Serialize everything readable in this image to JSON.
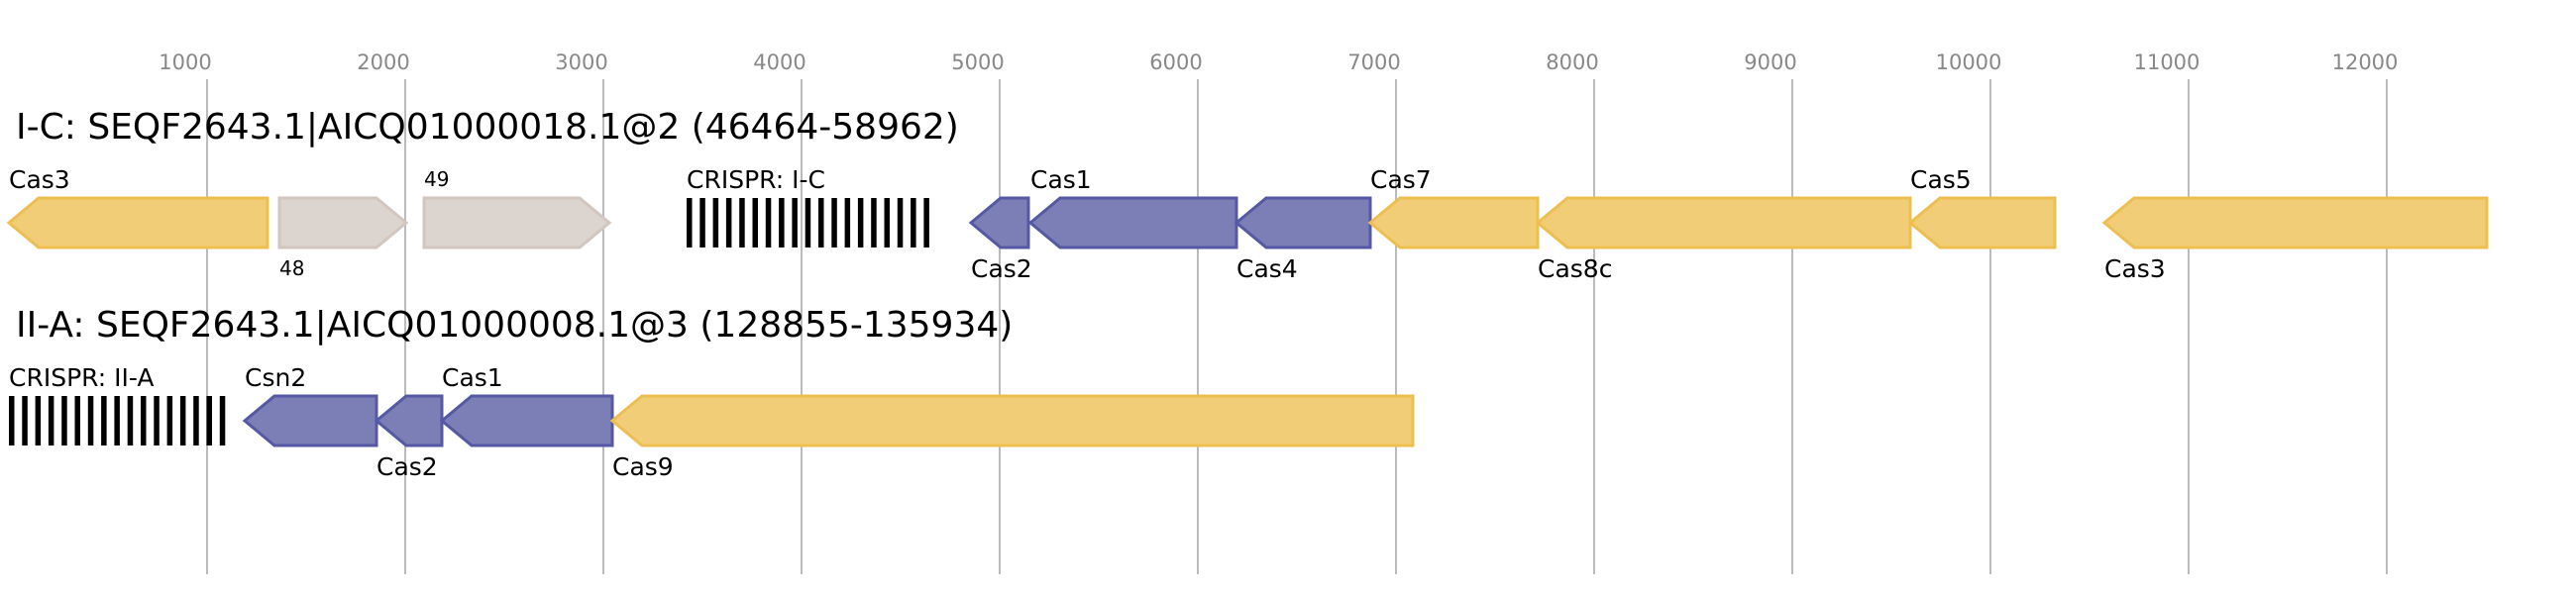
{
  "axis": {
    "ticks": [
      1000,
      2000,
      3000,
      4000,
      5000,
      6000,
      7000,
      8000,
      9000,
      10000,
      11000,
      12000
    ],
    "range_bp": [
      0,
      12600
    ],
    "grid": true
  },
  "colors": {
    "cas_yellow_fill": "#f1cd78",
    "cas_yellow_stroke": "#eebe4e",
    "cas_purple_fill": "#7b7fb5",
    "cas_purple_stroke": "#5558a5",
    "other_grey_fill": "#dcd4cf",
    "other_grey_stroke": "#d2c6bf",
    "crispr": "#000000"
  },
  "loci": [
    {
      "title": "I-C: SEQF2643.1|AICQ01000018.1@2 (46464-58962)",
      "features": [
        {
          "label": "Cas3",
          "start": 0,
          "end": 1305,
          "strand": "-",
          "kind": "yellow",
          "label_pos": "above"
        },
        {
          "label": "48",
          "start": 1365,
          "end": 2005,
          "strand": "+",
          "kind": "grey",
          "label_pos": "below",
          "small": true
        },
        {
          "label": "49",
          "start": 2095,
          "end": 3030,
          "strand": "+",
          "kind": "grey",
          "label_pos": "above",
          "small": true
        },
        {
          "label": "CRISPR: I-C",
          "start": 3420,
          "end": 4705,
          "kind": "crispr",
          "label_pos": "above"
        },
        {
          "label": "Cas2",
          "start": 4855,
          "end": 5145,
          "strand": "-",
          "kind": "purple",
          "label_pos": "below"
        },
        {
          "label": "Cas1",
          "start": 5155,
          "end": 6195,
          "strand": "-",
          "kind": "purple",
          "label_pos": "above"
        },
        {
          "label": "Cas4",
          "start": 6195,
          "end": 6870,
          "strand": "-",
          "kind": "purple",
          "label_pos": "below"
        },
        {
          "label": "Cas7",
          "start": 6870,
          "end": 7715,
          "strand": "-",
          "kind": "yellow",
          "label_pos": "above"
        },
        {
          "label": "Cas8c",
          "start": 7715,
          "end": 9595,
          "strand": "-",
          "kind": "yellow",
          "label_pos": "below"
        },
        {
          "label": "Cas5",
          "start": 9595,
          "end": 10325,
          "strand": "-",
          "kind": "yellow",
          "label_pos": "above"
        },
        {
          "label": "Cas3",
          "start": 10575,
          "end": 12505,
          "strand": "-",
          "kind": "yellow",
          "label_pos": "below"
        }
      ]
    },
    {
      "title": "II-A: SEQF2643.1|AICQ01000008.1@3 (128855-135934)",
      "features": [
        {
          "label": "CRISPR: II-A",
          "start": 0,
          "end": 1090,
          "kind": "crispr",
          "label_pos": "above"
        },
        {
          "label": "Csn2",
          "start": 1190,
          "end": 1855,
          "strand": "-",
          "kind": "purple",
          "label_pos": "above"
        },
        {
          "label": "Cas2",
          "start": 1855,
          "end": 2185,
          "strand": "-",
          "kind": "purple",
          "label_pos": "below"
        },
        {
          "label": "Cas1",
          "start": 2185,
          "end": 3045,
          "strand": "-",
          "kind": "purple",
          "label_pos": "above"
        },
        {
          "label": "Cas9",
          "start": 3045,
          "end": 7085,
          "strand": "-",
          "kind": "yellow",
          "label_pos": "below"
        }
      ]
    }
  ]
}
